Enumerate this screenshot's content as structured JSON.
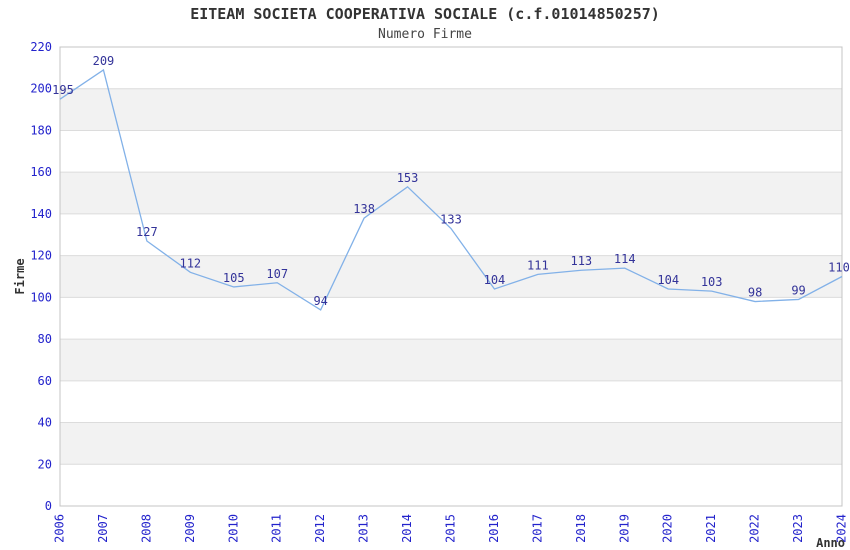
{
  "chart": {
    "title": "EITEAM SOCIETA COOPERATIVA SOCIALE (c.f.01014850257)",
    "subtitle": "Numero Firme"
  },
  "chart_data": {
    "type": "line",
    "title": "EITEAM SOCIETA COOPERATIVA SOCIALE (c.f.01014850257)",
    "subtitle": "Numero Firme",
    "xlabel": "Anno",
    "ylabel": "Firme",
    "categories": [
      "2006",
      "2007",
      "2008",
      "2009",
      "2010",
      "2011",
      "2012",
      "2013",
      "2014",
      "2015",
      "2016",
      "2017",
      "2018",
      "2019",
      "2020",
      "2021",
      "2022",
      "2023",
      "2024"
    ],
    "values": [
      195,
      209,
      127,
      112,
      105,
      107,
      94,
      138,
      153,
      133,
      104,
      111,
      113,
      114,
      104,
      103,
      98,
      99,
      110
    ],
    "ylim": [
      0,
      220
    ],
    "ytick_step": 20,
    "grid": true,
    "legend_position": "none",
    "colors": {
      "line": "#82b1e8",
      "axis_tick_label": "#2323cc",
      "value_label": "#333399",
      "band": "#f2f2f2",
      "gridline": "#dcdcdc",
      "frame": "#c4c4c4",
      "axis_title": "#333333",
      "background": "#ffffff"
    }
  }
}
